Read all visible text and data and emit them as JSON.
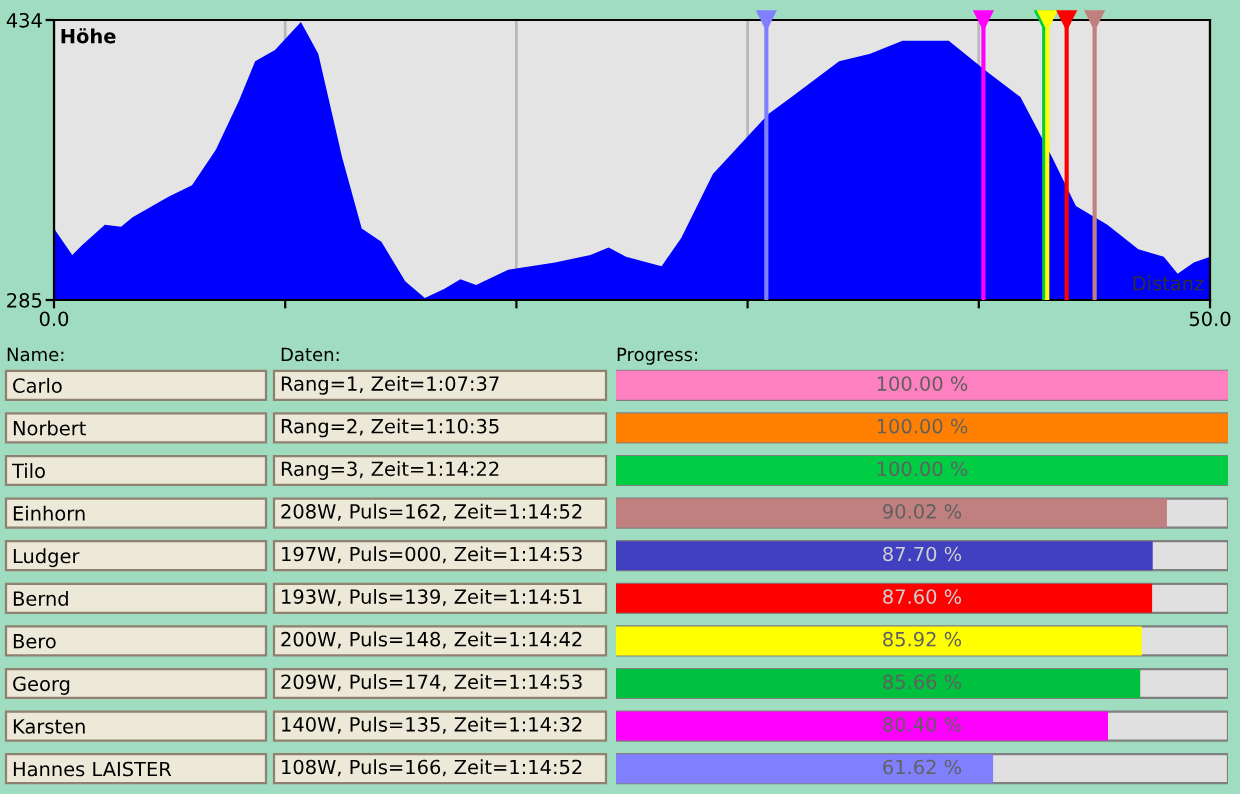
{
  "chart_data": [
    {
      "type": "area",
      "title": "Höhe",
      "xlabel": "Distanz",
      "x": [
        0,
        0.79,
        1.2,
        2.2,
        2.9,
        3.4,
        4.95,
        5.97,
        7.0,
        8.0,
        8.7,
        9.56,
        10.68,
        11.43,
        12.46,
        13.31,
        14.16,
        15.19,
        16.04,
        16.89,
        17.58,
        18.26,
        19.62,
        21.67,
        23.2,
        23.99,
        24.74,
        26.28,
        27.13,
        28.5,
        30.9,
        31.9,
        33.96,
        35.3,
        36.7,
        38.7,
        40.4,
        41.8,
        43.17,
        44.2,
        45.56,
        46.9,
        48.0,
        48.6,
        49.3,
        50
      ],
      "series": [
        {
          "color": "#0000ff",
          "values": [
            323,
            309,
            314,
            325,
            324,
            329,
            340,
            346,
            365,
            391,
            412,
            418,
            433,
            416,
            361,
            323,
            316,
            295,
            286,
            291,
            296,
            293,
            301,
            305,
            309,
            313,
            308,
            303,
            318,
            352,
            384,
            393,
            412,
            416,
            423,
            423,
            406,
            393,
            361,
            335,
            325,
            312,
            308,
            299,
            305,
            308
          ]
        }
      ],
      "xlim": [
        0,
        50
      ],
      "ylim": [
        285,
        434
      ],
      "xticks": [
        {
          "value": 0,
          "label": "0.0"
        },
        {
          "value": 10,
          "label": null
        },
        {
          "value": 20,
          "label": null
        },
        {
          "value": 30,
          "label": null
        },
        {
          "value": 40,
          "label": null
        },
        {
          "value": 50,
          "label": "50.0"
        }
      ],
      "yticks": [
        285,
        434
      ],
      "grid": "x",
      "ref_lines": [
        {
          "axis": "x",
          "value": 30.81,
          "color": "#8080ff"
        },
        {
          "axis": "x",
          "value": 40.2,
          "color": "#ff00ff"
        },
        {
          "axis": "x",
          "value": 42.83,
          "color": "#00cc44"
        },
        {
          "axis": "x",
          "value": 42.96,
          "color": "#ffff00"
        },
        {
          "axis": "x",
          "value": 43.8,
          "color": "#ff0000"
        },
        {
          "axis": "x",
          "value": 45.01,
          "color": "#c08080"
        }
      ]
    },
    {
      "type": "bar",
      "orientation": "horizontal",
      "title": "Progress:",
      "ylabel": "Name:",
      "categories": [
        "Carlo",
        "Norbert",
        "Tilo",
        "Einhorn",
        "Ludger",
        "Bernd",
        "Bero",
        "Georg",
        "Karsten",
        "Hannes LAISTER"
      ],
      "values": [
        100.0,
        100.0,
        100.0,
        90.02,
        87.7,
        87.6,
        85.92,
        85.66,
        80.4,
        61.62
      ],
      "colors": [
        "#ff80c0",
        "#ff8000",
        "#00cc44",
        "#c08080",
        "#4040c0",
        "#ff0000",
        "#ffff00",
        "#00c040",
        "#ff00ff",
        "#8080ff"
      ],
      "value_labels": [
        "100.00 %",
        "100.00 %",
        "100.00 %",
        "90.02 %",
        "87.70 %",
        "87.60 %",
        "85.92 %",
        "85.66 %",
        "80.40 %",
        "61.62 %"
      ],
      "xlim": [
        0,
        100
      ],
      "tick_labels": "y",
      "annotations": [
        "Daten:",
        "Rang=1, Zeit=1:07:37",
        "Rang=2, Zeit=1:10:35",
        "Rang=3, Zeit=1:14:22",
        "208W, Puls=162, Zeit=1:14:52",
        "197W, Puls=000, Zeit=1:14:53",
        "193W, Puls=139, Zeit=1:14:51",
        "200W, Puls=148, Zeit=1:14:42",
        "209W, Puls=174, Zeit=1:14:53",
        "140W, Puls=135, Zeit=1:14:32",
        "108W, Puls=166, Zeit=1:14:52"
      ]
    }
  ]
}
